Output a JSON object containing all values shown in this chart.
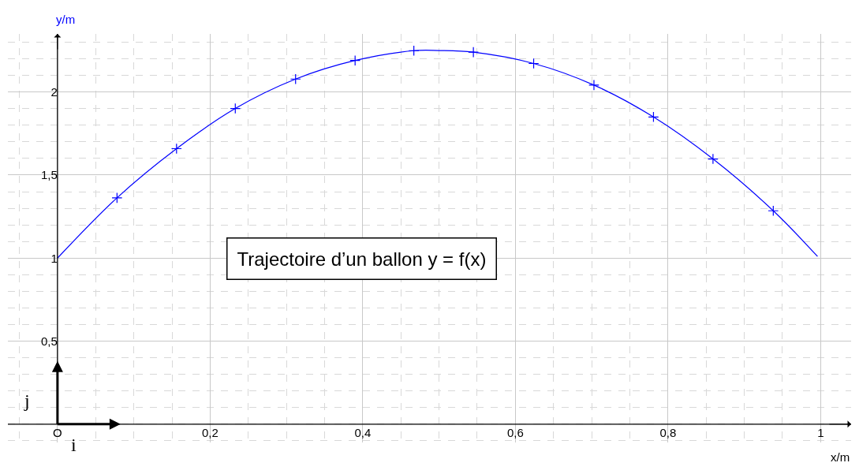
{
  "chart_data": {
    "type": "line",
    "xlabel": "x/m",
    "ylabel": "y/m",
    "xlim": [
      -0.065,
      1.04
    ],
    "ylim": [
      -0.11,
      2.35
    ],
    "xticks": [
      {
        "value": 0,
        "label": "O"
      },
      {
        "value": 0.2,
        "label": "0,2"
      },
      {
        "value": 0.4,
        "label": "0,4"
      },
      {
        "value": 0.6,
        "label": "0,6"
      },
      {
        "value": 0.8,
        "label": "0,8"
      },
      1
    ],
    "yticks": [
      {
        "value": 0.5,
        "label": "0,5"
      },
      1,
      {
        "value": 1.5,
        "label": "1,5"
      },
      2
    ],
    "grid": true,
    "series": [
      {
        "color": "#0000ff",
        "marker": "none",
        "x": [
          0,
          0.078,
          0.156,
          0.233,
          0.312,
          0.39,
          0.467,
          0.5,
          0.545,
          0.624,
          0.703,
          0.781,
          0.859,
          0.938,
          0.996
        ],
        "values": [
          1,
          1.363,
          1.659,
          1.901,
          2.078,
          2.19,
          2.249,
          2.25,
          2.24,
          2.172,
          2.042,
          1.85,
          1.597,
          1.285,
          1.01
        ]
      },
      {
        "type": "scatter",
        "color": "#0000ff",
        "marker": "cross",
        "x": [
          0.078,
          0.156,
          0.233,
          0.312,
          0.39,
          0.467,
          0.545,
          0.624,
          0.703,
          0.781,
          0.859,
          0.938
        ],
        "values": [
          1.363,
          1.659,
          1.901,
          2.078,
          2.19,
          2.249,
          2.24,
          2.172,
          2.042,
          1.85,
          1.597,
          1.285
        ]
      }
    ],
    "annotations": [
      "Trajectoire d’un ballon y = f(x)",
      "i⃗",
      "j⃗"
    ]
  }
}
